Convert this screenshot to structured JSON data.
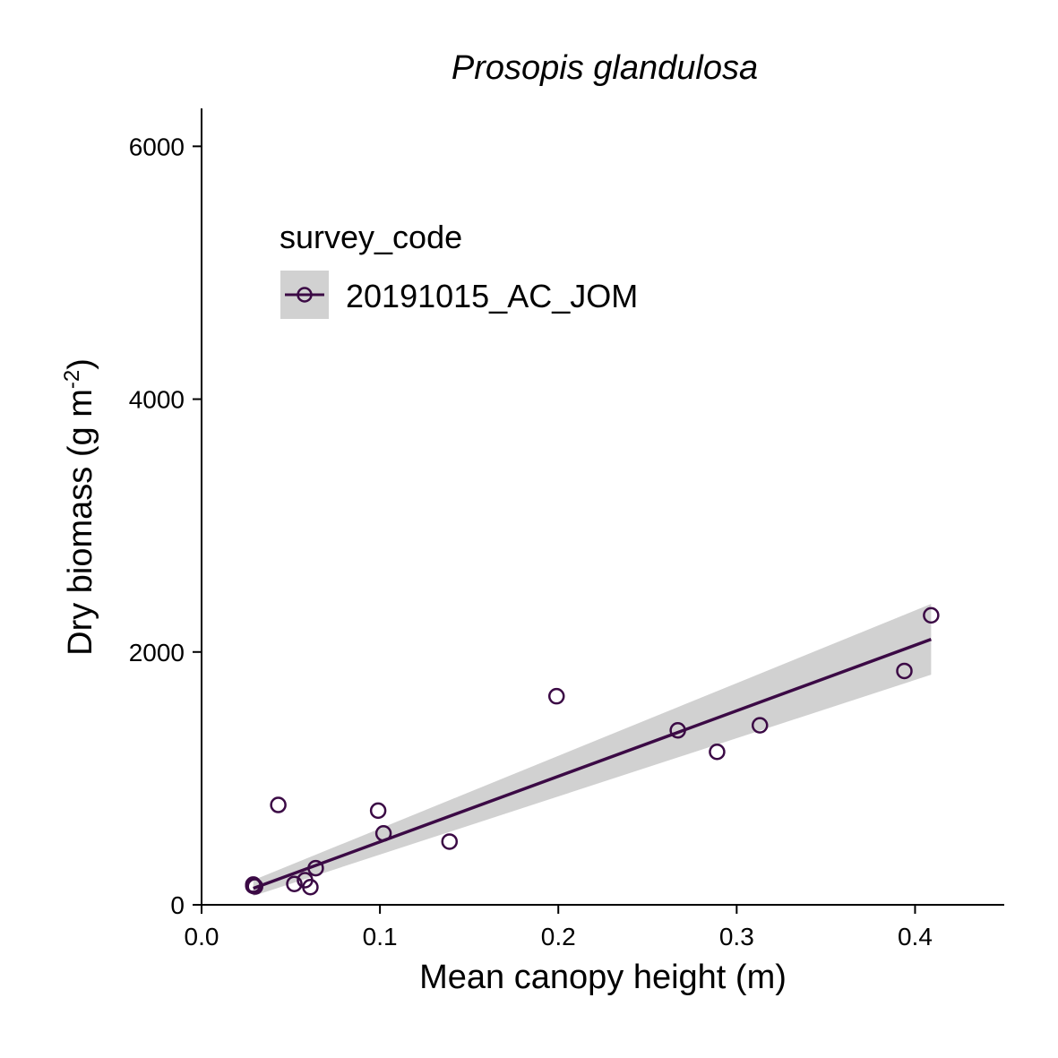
{
  "chart_data": {
    "type": "scatter",
    "title": "Prosopis glandulosa",
    "xlabel": "Mean canopy height (m)",
    "ylabel": {
      "base": "Dry biomass (g m",
      "sup": "-2",
      "close": ")"
    },
    "xlim": [
      0.0,
      0.45
    ],
    "ylim": [
      0,
      6300
    ],
    "x_ticks": [
      0.0,
      0.1,
      0.2,
      0.3,
      0.4
    ],
    "x_tick_labels": [
      "0.0",
      "0.1",
      "0.2",
      "0.3",
      "0.4"
    ],
    "y_ticks": [
      0,
      2000,
      4000,
      6000
    ],
    "y_tick_labels": [
      "0",
      "2000",
      "4000",
      "6000"
    ],
    "grid": false,
    "legend": {
      "title": "survey_code",
      "placement": "top-left",
      "entries": [
        "20191015_AC_JOM"
      ]
    },
    "series": [
      {
        "name": "20191015_AC_JOM",
        "color": "#3b0a45",
        "points": [
          {
            "x": 0.029,
            "y": 160
          },
          {
            "x": 0.029,
            "y": 150
          },
          {
            "x": 0.03,
            "y": 145
          },
          {
            "x": 0.043,
            "y": 790
          },
          {
            "x": 0.052,
            "y": 165
          },
          {
            "x": 0.058,
            "y": 195
          },
          {
            "x": 0.061,
            "y": 140
          },
          {
            "x": 0.064,
            "y": 290
          },
          {
            "x": 0.099,
            "y": 745
          },
          {
            "x": 0.102,
            "y": 565
          },
          {
            "x": 0.139,
            "y": 500
          },
          {
            "x": 0.199,
            "y": 1650
          },
          {
            "x": 0.267,
            "y": 1380
          },
          {
            "x": 0.289,
            "y": 1210
          },
          {
            "x": 0.313,
            "y": 1420
          },
          {
            "x": 0.394,
            "y": 1850
          },
          {
            "x": 0.409,
            "y": 2290
          }
        ],
        "fit": {
          "x_start": 0.029,
          "y_start": 130,
          "x_end": 0.409,
          "y_end": 2100,
          "ci_start": [
            70,
            195
          ],
          "ci_end": [
            1820,
            2380
          ]
        }
      }
    ]
  }
}
